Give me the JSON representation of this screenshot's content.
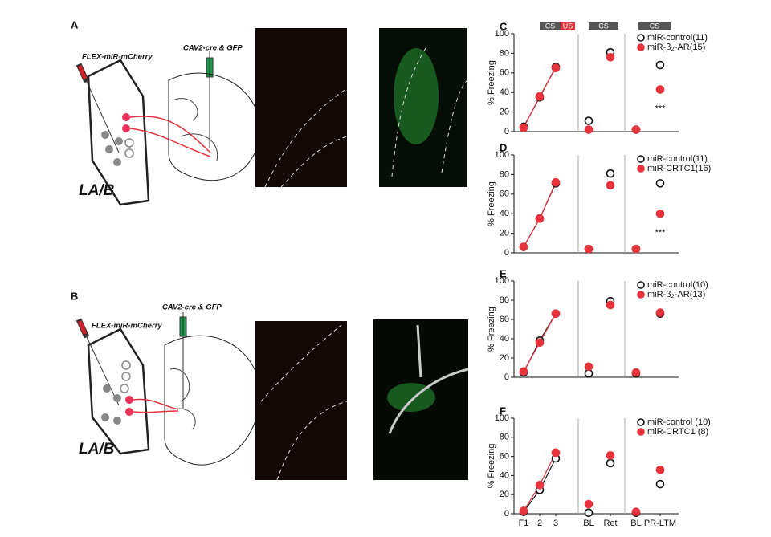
{
  "panel_a": {
    "letter": "A",
    "virus_left": "FLEX-miR-mCherry",
    "virus_right": "CAV2-cre & GFP",
    "region": "LA/B"
  },
  "panel_b": {
    "letter": "B",
    "virus_left": "FLEX-miR-mCherry",
    "virus_right": "CAV2-cre & GFP",
    "region": "LA/B"
  },
  "chart_data": [
    {
      "type": "line",
      "letter": "C",
      "ylabel": "% Freezing",
      "ylim": [
        0,
        100
      ],
      "yticks": [
        0,
        20,
        40,
        60,
        80,
        100
      ],
      "categories": [
        null,
        null,
        null,
        null,
        null,
        null,
        null
      ],
      "header_boxes": [
        "CS",
        "US",
        "CS",
        "CS"
      ],
      "annotation": "***",
      "series": [
        {
          "name": "miR-control(11)",
          "color": "#111111",
          "filled": false,
          "values": [
            5,
            35,
            66,
            11,
            81,
            2,
            68
          ]
        },
        {
          "name": "miR-β₂-AR(15)",
          "color": "#e8323c",
          "filled": true,
          "values": [
            4,
            36,
            65,
            2,
            76,
            2,
            43
          ]
        }
      ]
    },
    {
      "type": "line",
      "letter": "D",
      "ylabel": "% Freezing",
      "ylim": [
        0,
        100
      ],
      "yticks": [
        0,
        20,
        40,
        60,
        80,
        100
      ],
      "categories": [
        null,
        null,
        null,
        null,
        null,
        null,
        null
      ],
      "annotation": "***",
      "series": [
        {
          "name": "miR-control(11)",
          "color": "#111111",
          "filled": false,
          "values": [
            6,
            35,
            71,
            4,
            81,
            4,
            71
          ]
        },
        {
          "name": "miR-CRTC1(16)",
          "color": "#e8323c",
          "filled": true,
          "values": [
            6,
            35,
            72,
            4,
            69,
            4,
            40
          ]
        }
      ]
    },
    {
      "type": "line",
      "letter": "E",
      "ylabel": "% Freezing",
      "ylim": [
        0,
        100
      ],
      "yticks": [
        0,
        20,
        40,
        60,
        80,
        100
      ],
      "categories": [
        null,
        null,
        null,
        null,
        null,
        null,
        null
      ],
      "series": [
        {
          "name": "miR-control(10)",
          "color": "#111111",
          "filled": false,
          "values": [
            5,
            38,
            66,
            4,
            79,
            4,
            66
          ]
        },
        {
          "name": "miR-β₂-AR(13)",
          "color": "#e8323c",
          "filled": true,
          "values": [
            6,
            36,
            66,
            11,
            75,
            5,
            67
          ]
        }
      ]
    },
    {
      "type": "line",
      "letter": "F",
      "ylabel": "% Freezing",
      "ylim": [
        0,
        100
      ],
      "yticks": [
        0,
        20,
        40,
        60,
        80,
        100
      ],
      "categories": [
        "F1",
        "2",
        "3",
        "BL",
        "Ret",
        "BL",
        "PR-LTM"
      ],
      "series": [
        {
          "name": "miR-control (10)",
          "color": "#111111",
          "filled": false,
          "values": [
            2,
            25,
            58,
            1,
            53,
            1,
            31
          ]
        },
        {
          "name": "miR-CRTC1 (8)",
          "color": "#e8323c",
          "filled": true,
          "values": [
            3,
            30,
            64,
            10,
            61,
            2,
            46
          ]
        }
      ]
    }
  ]
}
